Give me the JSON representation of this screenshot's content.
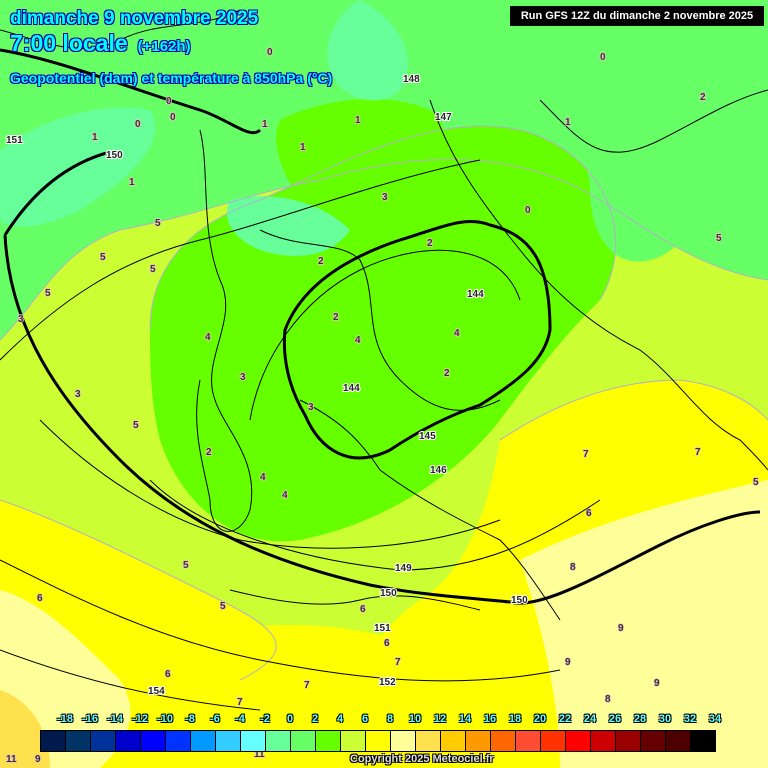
{
  "header": {
    "date": "dimanche 9 novembre 2025",
    "time": "7:00 locale",
    "lead": "(+162h)",
    "parameter": "Geopotentiel (dam) et température à 850hPa (°C)"
  },
  "run_label": "Run GFS 12Z du dimanche 2 novembre 2025",
  "copyright": "Copyright 2025 Meteociel.fr",
  "colorbar": {
    "labels": [
      "-18",
      "-16",
      "-14",
      "-12",
      "-10",
      "-8",
      "-6",
      "-4",
      "-2",
      "0",
      "2",
      "4",
      "6",
      "8",
      "10",
      "12",
      "14",
      "16",
      "18",
      "20",
      "22",
      "24",
      "26",
      "28",
      "30",
      "32",
      "34"
    ],
    "colors": [
      "#001a4d",
      "#003366",
      "#003399",
      "#0000cc",
      "#0000ff",
      "#0033ff",
      "#0099ff",
      "#33ccff",
      "#66ffff",
      "#66ff99",
      "#66ff66",
      "#66ff00",
      "#ccff33",
      "#ffff00",
      "#ffff99",
      "#ffe14d",
      "#ffcc00",
      "#ff9900",
      "#ff6600",
      "#ff4d33",
      "#ff3300",
      "#ff0000",
      "#cc0000",
      "#990000",
      "#660000",
      "#4d0000",
      "#000000"
    ]
  },
  "geopotential_labels": [
    "148",
    "147",
    "150",
    "151",
    "144",
    "144",
    "145",
    "146",
    "149",
    "150",
    "150",
    "151",
    "152",
    "154"
  ],
  "temperature_labels": [
    "0",
    "0",
    "1",
    "1",
    "0",
    "1",
    "0",
    "0",
    "2",
    "1",
    "1",
    "5",
    "5",
    "5",
    "3",
    "3",
    "2",
    "2",
    "3",
    "2",
    "2",
    "4",
    "4",
    "4",
    "4",
    "3",
    "4",
    "3",
    "5",
    "5",
    "5",
    "6",
    "5",
    "5",
    "7",
    "7",
    "7",
    "6",
    "6",
    "9",
    "9",
    "9",
    "8",
    "8",
    "7",
    "7",
    "6",
    "6",
    "11",
    "11",
    "9",
    "2",
    "1",
    "0",
    "5"
  ]
}
